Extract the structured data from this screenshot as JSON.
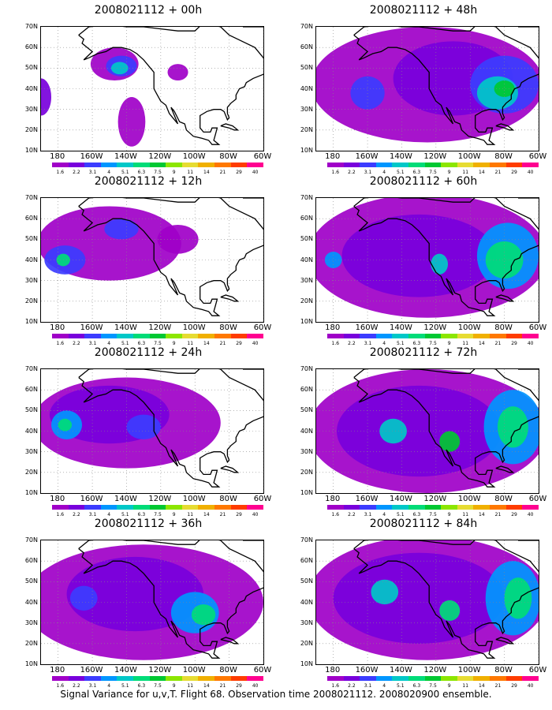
{
  "panels": [
    {
      "title": "2008021112 + 00h",
      "blobs": [
        {
          "lon": -147,
          "lat": 52,
          "rx": 14,
          "ry": 8,
          "level": 0
        },
        {
          "lon": -143,
          "lat": 51,
          "rx": 9,
          "ry": 5,
          "level": 2
        },
        {
          "lon": -144,
          "lat": 50,
          "rx": 5,
          "ry": 3,
          "level": 4
        },
        {
          "lon": -190,
          "lat": 36,
          "rx": 6,
          "ry": 9,
          "level": 1
        },
        {
          "lon": -137,
          "lat": 24,
          "rx": 8,
          "ry": 12,
          "level": 0
        },
        {
          "lon": -110,
          "lat": 48,
          "rx": 6,
          "ry": 4,
          "level": 0
        }
      ]
    },
    {
      "title": "2008021112 + 48h",
      "blobs": [
        {
          "lon": -125,
          "lat": 42,
          "rx": 68,
          "ry": 28,
          "level": 0
        },
        {
          "lon": -110,
          "lat": 45,
          "rx": 35,
          "ry": 18,
          "level": 1
        },
        {
          "lon": -80,
          "lat": 42,
          "rx": 20,
          "ry": 14,
          "level": 2
        },
        {
          "lon": -84,
          "lat": 38,
          "rx": 12,
          "ry": 8,
          "level": 4
        },
        {
          "lon": -80,
          "lat": 40,
          "rx": 6,
          "ry": 4,
          "level": 6
        },
        {
          "lon": -160,
          "lat": 38,
          "rx": 10,
          "ry": 8,
          "level": 2
        }
      ]
    },
    {
      "title": "2008021112 + 12h",
      "blobs": [
        {
          "lon": -150,
          "lat": 48,
          "rx": 42,
          "ry": 18,
          "level": 0
        },
        {
          "lon": -176,
          "lat": 40,
          "rx": 12,
          "ry": 7,
          "level": 2
        },
        {
          "lon": -177,
          "lat": 40,
          "rx": 4,
          "ry": 3,
          "level": 5
        },
        {
          "lon": -143,
          "lat": 55,
          "rx": 10,
          "ry": 5,
          "level": 2
        },
        {
          "lon": -110,
          "lat": 50,
          "rx": 12,
          "ry": 7,
          "level": 0
        }
      ]
    },
    {
      "title": "2008021112 + 60h",
      "blobs": [
        {
          "lon": -125,
          "lat": 42,
          "rx": 70,
          "ry": 30,
          "level": 0
        },
        {
          "lon": -130,
          "lat": 42,
          "rx": 45,
          "ry": 20,
          "level": 1
        },
        {
          "lon": -78,
          "lat": 42,
          "rx": 18,
          "ry": 16,
          "level": 3
        },
        {
          "lon": -80,
          "lat": 40,
          "rx": 11,
          "ry": 9,
          "level": 5
        },
        {
          "lon": -118,
          "lat": 38,
          "rx": 5,
          "ry": 5,
          "level": 4
        },
        {
          "lon": -180,
          "lat": 40,
          "rx": 5,
          "ry": 4,
          "level": 3
        }
      ]
    },
    {
      "title": "2008021112 + 24h",
      "blobs": [
        {
          "lon": -140,
          "lat": 44,
          "rx": 55,
          "ry": 22,
          "level": 0
        },
        {
          "lon": -150,
          "lat": 48,
          "rx": 35,
          "ry": 14,
          "level": 1
        },
        {
          "lon": -175,
          "lat": 43,
          "rx": 9,
          "ry": 7,
          "level": 3
        },
        {
          "lon": -176,
          "lat": 43,
          "rx": 4,
          "ry": 3,
          "level": 5
        },
        {
          "lon": -130,
          "lat": 42,
          "rx": 10,
          "ry": 6,
          "level": 2
        }
      ]
    },
    {
      "title": "2008021112 + 72h",
      "blobs": [
        {
          "lon": -125,
          "lat": 40,
          "rx": 70,
          "ry": 30,
          "level": 0
        },
        {
          "lon": -130,
          "lat": 40,
          "rx": 48,
          "ry": 22,
          "level": 1
        },
        {
          "lon": -75,
          "lat": 42,
          "rx": 17,
          "ry": 18,
          "level": 3
        },
        {
          "lon": -75,
          "lat": 42,
          "rx": 9,
          "ry": 10,
          "level": 5
        },
        {
          "lon": -145,
          "lat": 40,
          "rx": 8,
          "ry": 6,
          "level": 4
        },
        {
          "lon": -112,
          "lat": 35,
          "rx": 6,
          "ry": 5,
          "level": 6
        }
      ]
    },
    {
      "title": "2008021112 + 36h",
      "blobs": [
        {
          "lon": -130,
          "lat": 40,
          "rx": 70,
          "ry": 28,
          "level": 0
        },
        {
          "lon": -135,
          "lat": 44,
          "rx": 40,
          "ry": 18,
          "level": 1
        },
        {
          "lon": -100,
          "lat": 35,
          "rx": 14,
          "ry": 10,
          "level": 3
        },
        {
          "lon": -95,
          "lat": 34,
          "rx": 7,
          "ry": 5,
          "level": 5
        },
        {
          "lon": -165,
          "lat": 42,
          "rx": 8,
          "ry": 6,
          "level": 2
        }
      ]
    },
    {
      "title": "2008021112 + 84h",
      "blobs": [
        {
          "lon": -125,
          "lat": 42,
          "rx": 70,
          "ry": 30,
          "level": 0
        },
        {
          "lon": -130,
          "lat": 42,
          "rx": 50,
          "ry": 22,
          "level": 1
        },
        {
          "lon": -75,
          "lat": 42,
          "rx": 16,
          "ry": 18,
          "level": 3
        },
        {
          "lon": -72,
          "lat": 42,
          "rx": 8,
          "ry": 10,
          "level": 5
        },
        {
          "lon": -150,
          "lat": 45,
          "rx": 8,
          "ry": 6,
          "level": 4
        },
        {
          "lon": -112,
          "lat": 36,
          "rx": 6,
          "ry": 5,
          "level": 5
        }
      ]
    }
  ],
  "y_ticks": [
    "10N",
    "20N",
    "30N",
    "40N",
    "50N",
    "60N",
    "70N"
  ],
  "x_ticks": [
    "180",
    "160W",
    "140W",
    "120W",
    "100W",
    "80W",
    "60W"
  ],
  "colorbar": {
    "labels": [
      "1.6",
      "2.2",
      "3.1",
      "4",
      "5.1",
      "6.3",
      "7.5",
      "9",
      "11",
      "14",
      "21",
      "29",
      "40"
    ],
    "colors": [
      "#a000c8",
      "#7800dc",
      "#3c3cff",
      "#0096ff",
      "#00c8c8",
      "#00dc78",
      "#00c832",
      "#8ce600",
      "#e6dc32",
      "#f0b000",
      "#ff7800",
      "#ff3c00",
      "#ff0090"
    ]
  },
  "caption": "Signal Variance for u,v,T. Flight 68. Observation time 2008021112. 2008020900 ensemble."
}
